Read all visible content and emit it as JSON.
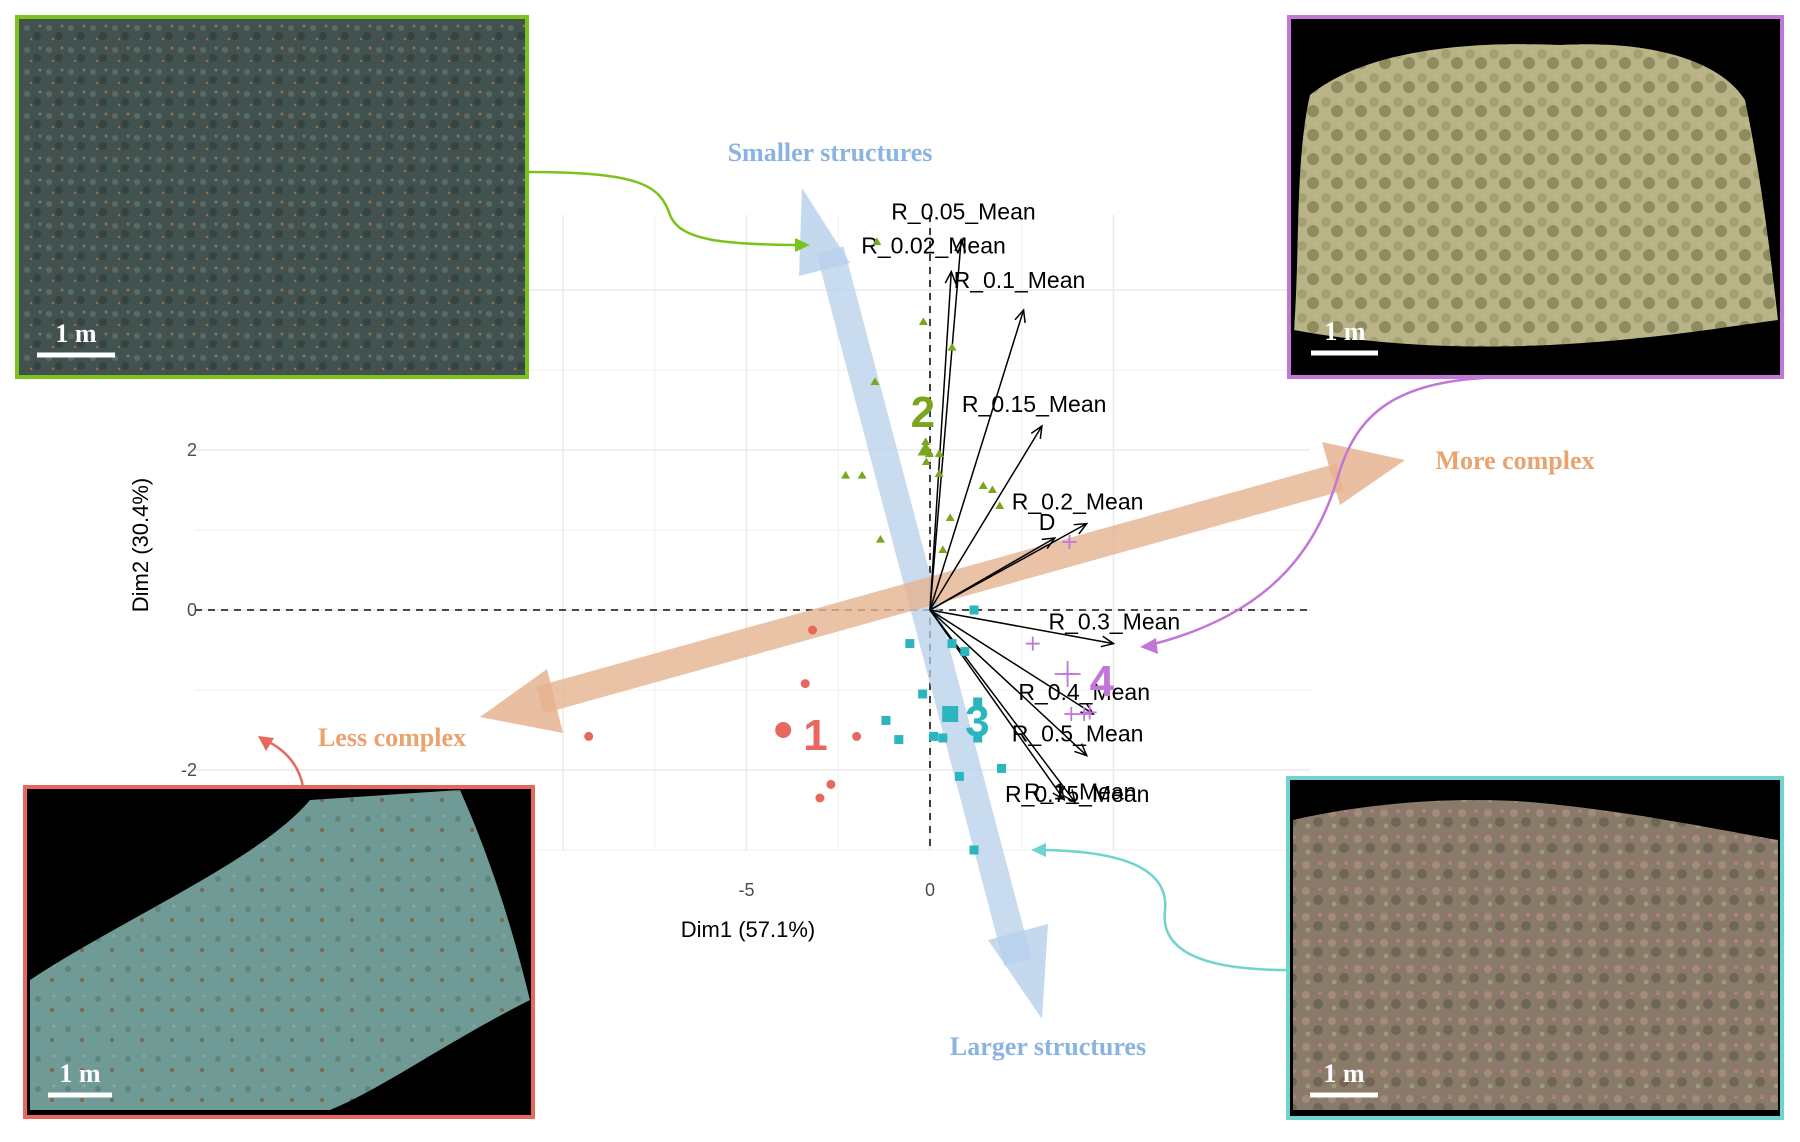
{
  "chart_data": {
    "type": "scatter",
    "title": "",
    "xlabel": "Dim1 (57.1%)",
    "ylabel": "Dim2 (30.4%)",
    "xlim": [
      -10.1,
      5.0
    ],
    "ylim": [
      -3.2,
      4.83
    ],
    "x_ticks": [
      -5,
      0
    ],
    "y_ticks": [
      -2,
      0,
      2
    ],
    "grid": true,
    "groups": [
      {
        "label": "1",
        "color": "#e8675f",
        "marker": "circle",
        "centroid": [
          -4.0,
          -1.5
        ],
        "points": [
          [
            -9.3,
            -1.58
          ],
          [
            -3.4,
            -0.92
          ],
          [
            -3.2,
            -0.25
          ],
          [
            -2.0,
            -1.58
          ],
          [
            -3.0,
            -2.35
          ],
          [
            -2.7,
            -2.18
          ]
        ]
      },
      {
        "label": "2",
        "color": "#7aa51c",
        "marker": "triangle",
        "centroid": [
          -0.12,
          2.0
        ],
        "points": [
          [
            -1.45,
            4.6
          ],
          [
            -0.18,
            3.6
          ],
          [
            0.6,
            3.28
          ],
          [
            -1.5,
            2.85
          ],
          [
            -0.12,
            2.1
          ],
          [
            -0.02,
            1.95
          ],
          [
            0.25,
            1.95
          ],
          [
            0.25,
            1.7
          ],
          [
            -2.3,
            1.68
          ],
          [
            -1.85,
            1.68
          ],
          [
            1.45,
            1.55
          ],
          [
            1.7,
            1.5
          ],
          [
            1.9,
            1.3
          ],
          [
            0.55,
            1.15
          ],
          [
            -1.35,
            0.88
          ],
          [
            0.35,
            0.75
          ],
          [
            -0.1,
            1.85
          ]
        ]
      },
      {
        "label": "3",
        "color": "#2ab5bf",
        "marker": "square",
        "centroid": [
          0.55,
          -1.3
        ],
        "points": [
          [
            1.2,
            0.0
          ],
          [
            -0.55,
            -0.42
          ],
          [
            0.6,
            -0.42
          ],
          [
            0.95,
            -0.52
          ],
          [
            -0.2,
            -1.05
          ],
          [
            1.3,
            -1.15
          ],
          [
            -1.2,
            -1.38
          ],
          [
            0.1,
            -1.58
          ],
          [
            1.3,
            -1.6
          ],
          [
            -0.85,
            -1.62
          ],
          [
            1.95,
            -1.98
          ],
          [
            0.8,
            -2.08
          ],
          [
            1.2,
            -3.0
          ],
          [
            0.35,
            -1.6
          ]
        ]
      },
      {
        "label": "4",
        "color": "#c276d8",
        "marker": "plus",
        "centroid": [
          3.75,
          -0.8
        ],
        "points": [
          [
            3.8,
            0.85
          ],
          [
            2.8,
            -0.42
          ],
          [
            3.75,
            -0.8
          ],
          [
            3.85,
            -1.3
          ],
          [
            4.2,
            -1.3
          ],
          [
            4.35,
            -1.28
          ]
        ]
      }
    ],
    "loadings": [
      {
        "label": "R_0.05_Mean",
        "x": 0.85,
        "y": 4.63
      },
      {
        "label": "R_0.02_Mean",
        "x": 0.58,
        "y": 4.23
      },
      {
        "label": "R_0.1_Mean",
        "x": 2.55,
        "y": 3.75
      },
      {
        "label": "R_0.15_Mean",
        "x": 3.05,
        "y": 2.3
      },
      {
        "label": "R_0.2_Mean",
        "x": 4.27,
        "y": 1.08
      },
      {
        "label": "D",
        "x": 3.4,
        "y": 0.9
      },
      {
        "label": "R_0.3_Mean",
        "x": 5.0,
        "y": -0.42
      },
      {
        "label": "R_0.4_Mean",
        "x": 4.45,
        "y": -1.3
      },
      {
        "label": "R_0.5_Mean",
        "x": 4.27,
        "y": -1.82
      },
      {
        "label": "R_0.75_Mean",
        "x": 3.95,
        "y": -2.4
      },
      {
        "label": "R_1_Mean",
        "x": 3.65,
        "y": -2.37
      }
    ]
  },
  "annotations": {
    "smaller": "Smaller structures",
    "larger": "Larger structures",
    "more_complex": "More complex",
    "less_complex": "Less complex",
    "scale_bar_label": "1 m"
  },
  "colors": {
    "group1": "#e8675f",
    "group2": "#7aa51c",
    "group3": "#2ab5bf",
    "group4": "#c276d8",
    "size_axis": "#b7cfea",
    "complexity_axis": "#e5b390",
    "size_text": "#8ab3e0",
    "complexity_text": "#eaa26e"
  }
}
